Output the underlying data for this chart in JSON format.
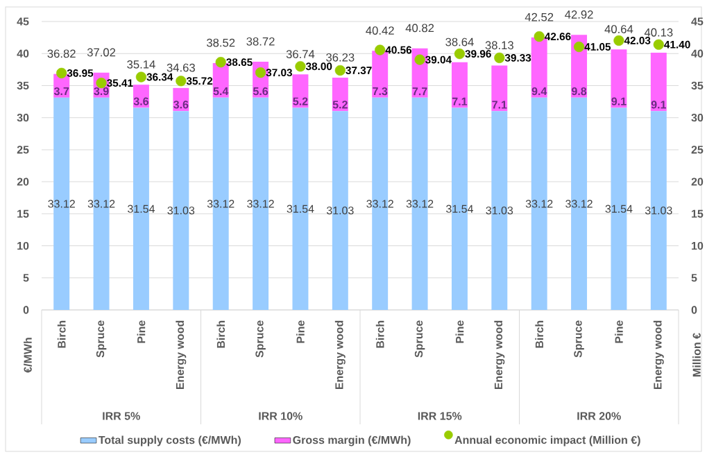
{
  "chart_data": {
    "type": "bar",
    "stacked": true,
    "categories": [
      "Birch",
      "Spruce",
      "Pine",
      "Energy wood",
      "Birch",
      "Spruce",
      "Pine",
      "Energy wood",
      "Birch",
      "Spruce",
      "Pine",
      "Energy wood",
      "Birch",
      "Spruce",
      "Pine",
      "Energy wood"
    ],
    "annotations": [
      "IRR 5%",
      "IRR 10%",
      "IRR 15%",
      "IRR 20%"
    ],
    "ylabel": "€/MWh",
    "y2label": "Million €",
    "ylim": [
      0,
      45
    ],
    "yticks": [
      0,
      5,
      10,
      15,
      20,
      25,
      30,
      35,
      40,
      45
    ],
    "y2lim": [
      0,
      45
    ],
    "y2ticks": [
      0,
      5,
      10,
      15,
      20,
      25,
      30,
      35,
      40,
      45
    ],
    "grid": "y",
    "legend": "bottom",
    "data_labels": true,
    "totals": [
      "36.82",
      "37.02",
      "35.14",
      "34.63",
      "38.52",
      "38.72",
      "36.74",
      "36.23",
      "40.42",
      "40.82",
      "38.64",
      "38.13",
      "42.52",
      "42.92",
      "40.64",
      "40.13"
    ],
    "series": [
      {
        "name": "Total supply costs (€/MWh)",
        "color": "#99ccff",
        "values": [
          33.12,
          33.12,
          31.54,
          31.03,
          33.12,
          33.12,
          31.54,
          31.03,
          33.12,
          33.12,
          31.54,
          31.03,
          33.12,
          33.12,
          31.54,
          31.03
        ]
      },
      {
        "name": "Gross margin (€/MWh)",
        "color": "#ff66ff",
        "values": [
          3.7,
          3.9,
          3.6,
          3.6,
          5.4,
          5.6,
          5.2,
          5.2,
          7.3,
          7.7,
          7.1,
          7.1,
          9.4,
          9.8,
          9.1,
          9.1
        ]
      },
      {
        "name": "Annual economic impact (Million €)",
        "type": "scatter",
        "axis": "y2",
        "marker": "circle",
        "color": "#99cc00",
        "values": [
          36.95,
          35.41,
          36.34,
          35.72,
          38.65,
          37.03,
          38.0,
          37.37,
          40.56,
          39.04,
          39.96,
          39.33,
          42.66,
          41.05,
          42.03,
          41.4
        ],
        "value_labels": [
          "36.95",
          "35.41",
          "36.34",
          "35.72",
          "38.65",
          "37.03",
          "38.00",
          "37.37",
          "40.56",
          "39.04",
          "39.96",
          "39.33",
          "42.66",
          "41.05",
          "42.03",
          "41.40"
        ]
      }
    ]
  }
}
